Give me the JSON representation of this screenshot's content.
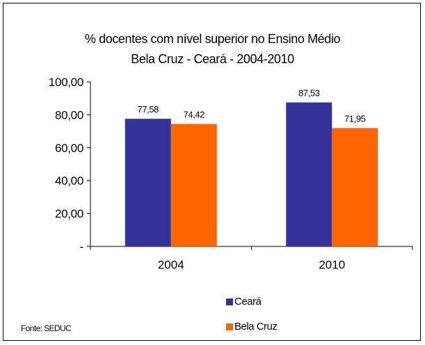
{
  "chart_data": {
    "type": "bar",
    "title_line1": "% docentes com nível  superior no Ensino Médio",
    "title_line2": "Bela Cruz  -  Ceará - 2004-2010",
    "categories": [
      "2004",
      "2010"
    ],
    "series": [
      {
        "name": "Ceará",
        "values": [
          77.58,
          87.53
        ],
        "labels": [
          "77,58",
          "87,53"
        ],
        "color": "#333399"
      },
      {
        "name": "Bela Cruz",
        "values": [
          74.42,
          71.95
        ],
        "labels": [
          "74,42",
          "71,95"
        ],
        "color": "#ff6600"
      }
    ],
    "ylim": [
      0,
      100
    ],
    "yticks": [
      0,
      20,
      40,
      60,
      80,
      100
    ],
    "ytick_labels": [
      "-",
      "20,00",
      "40,00",
      "60,00",
      "80,00",
      "100,00"
    ],
    "grid": false,
    "legend_position": "bottom-right"
  },
  "source": "Fonte: SEDUC"
}
